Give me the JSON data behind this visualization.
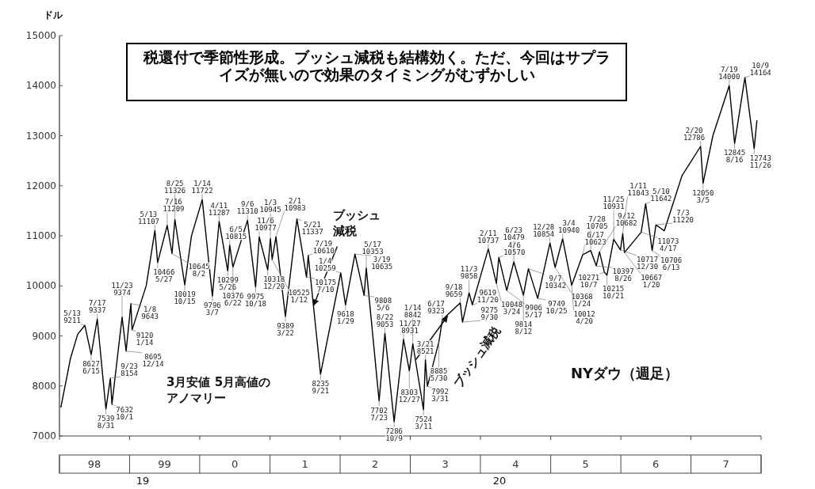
{
  "chart_data": {
    "type": "line",
    "title": "税還付で季節性形成。ブッシュ減税も結構効く。ただ、今回はサプライズが無いので効果のタイミングがむずかしい",
    "ylabel": "ドル",
    "xlim": [
      "1998-01-01",
      "2008-01-01"
    ],
    "xticks": [
      {
        "value": "1998-01-01",
        "label": null
      },
      {
        "value": "1998-07-02",
        "label": "98"
      },
      {
        "value": "1999-01-01",
        "label": null
      },
      {
        "value": "1999-07-02",
        "label": "99"
      },
      {
        "value": "2000-01-01",
        "label": null
      },
      {
        "value": "2000-07-02",
        "label": "0"
      },
      {
        "value": "2001-01-01",
        "label": null
      },
      {
        "value": "2001-07-02",
        "label": "1"
      },
      {
        "value": "2002-01-01",
        "label": null
      },
      {
        "value": "2002-07-02",
        "label": "2"
      },
      {
        "value": "2003-01-01",
        "label": null
      },
      {
        "value": "2003-07-02",
        "label": "3"
      },
      {
        "value": "2004-01-01",
        "label": null
      },
      {
        "value": "2004-07-02",
        "label": "4"
      },
      {
        "value": "2005-01-01",
        "label": null
      },
      {
        "value": "2005-07-02",
        "label": "5"
      },
      {
        "value": "2006-01-01",
        "label": null
      },
      {
        "value": "2006-07-02",
        "label": "6"
      },
      {
        "value": "2007-01-01",
        "label": null
      },
      {
        "value": "2007-07-02",
        "label": "7"
      },
      {
        "value": "2008-01-01",
        "label": null
      }
    ],
    "ylim": [
      7000,
      15000
    ],
    "yticks": [
      7000,
      8000,
      9000,
      10000,
      11000,
      12000,
      13000,
      14000,
      15000
    ],
    "series": [
      {
        "color": "#000000",
        "x": [
          "1998-01-09",
          "1998-02-27",
          "1998-04-06",
          "1998-05-13",
          "1998-06-15",
          "1998-07-17",
          "1998-08-31",
          "1998-09-23",
          "1998-10-01",
          "1998-11-23",
          "1998-12-14",
          "1999-01-08",
          "1999-01-14",
          "1999-03-29",
          "1999-05-13",
          "1999-05-27",
          "1999-07-16",
          "1999-08-10",
          "1999-08-25",
          "1999-10-15",
          "1999-11-19",
          "2000-01-14",
          "2000-03-07",
          "2000-04-11",
          "2000-05-26",
          "2000-06-05",
          "2000-06-22",
          "2000-09-06",
          "2000-10-18",
          "2000-11-06",
          "2000-12-20",
          "2001-01-03",
          "2001-01-12",
          "2001-02-01",
          "2001-03-22",
          "2001-05-21",
          "2001-07-10",
          "2001-07-19",
          "2001-09-21",
          "2002-01-04",
          "2002-01-29",
          "2002-03-19",
          "2002-05-06",
          "2002-05-17",
          "2002-07-23",
          "2002-08-22",
          "2002-10-09",
          "2002-11-27",
          "2002-12-27",
          "2003-01-14",
          "2003-03-11",
          "2003-03-21",
          "2003-03-31",
          "2003-05-30",
          "2003-06-17",
          "2003-09-18",
          "2003-09-30",
          "2003-11-03",
          "2003-11-20",
          "2004-02-11",
          "2004-03-24",
          "2004-04-06",
          "2004-05-17",
          "2004-06-23",
          "2004-08-12",
          "2004-09-07",
          "2004-10-25",
          "2004-12-28",
          "2005-01-24",
          "2005-03-04",
          "2005-04-20",
          "2005-06-17",
          "2005-07-28",
          "2005-08-26",
          "2005-09-12",
          "2005-10-07",
          "2005-10-21",
          "2005-11-25",
          "2005-12-30",
          "2006-01-11",
          "2006-01-20",
          "2006-04-17",
          "2006-05-10",
          "2006-06-13",
          "2006-07-03",
          "2006-08-15",
          "2006-11-15",
          "2007-02-20",
          "2007-03-05",
          "2007-04-25",
          "2007-07-19",
          "2007-08-16",
          "2007-10-09",
          "2007-11-26",
          "2007-12-10"
        ],
        "values": [
          7580,
          8545,
          9033,
          9211,
          8627,
          9337,
          7539,
          8154,
          7632,
          9374,
          8695,
          9643,
          9120,
          10006,
          11107,
          10466,
          11209,
          10645,
          11326,
          10019,
          10998,
          11722,
          9796,
          11287,
          10299,
          10815,
          10376,
          11310,
          9975,
          10977,
          10318,
          10945,
          10525,
          10983,
          9389,
          11337,
          10175,
          10610,
          8235,
          10259,
          9618,
          10635,
          9808,
          10353,
          7702,
          9053,
          7286,
          8931,
          8303,
          8842,
          7524,
          8521,
          7992,
          8885,
          9323,
          9659,
          9275,
          9858,
          9619,
          10737,
          10048,
          10570,
          9906,
          10479,
          9814,
          10342,
          9749,
          10854,
          10368,
          10940,
          10012,
          10623,
          10705,
          10397,
          10682,
          10271,
          10215,
          10931,
          10717,
          11043,
          10667,
          11073,
          11642,
          10706,
          11220,
          11100,
          12200,
          12786,
          12050,
          13000,
          14000,
          12845,
          14164,
          12743,
          13300
        ]
      }
    ],
    "annotations": [
      {
        "text": "5/13\n9211",
        "x": "1998-05-13",
        "y": 9211
      },
      {
        "text": "8627\n6/15",
        "x": "1998-06-15",
        "y": 8627
      },
      {
        "text": "7/17\n9337",
        "x": "1998-07-17",
        "y": 9337
      },
      {
        "text": "7539\n8/31",
        "x": "1998-08-31",
        "y": 7539
      },
      {
        "text": "9/23\n8154",
        "x": "1998-09-23",
        "y": 8154
      },
      {
        "text": "7632\n10/1",
        "x": "1998-10-01",
        "y": 7632
      },
      {
        "text": "11/23\n9374",
        "x": "1998-11-23",
        "y": 9374
      },
      {
        "text": "8695\n12/14",
        "x": "1998-12-14",
        "y": 8695
      },
      {
        "text": "1/8\n9643",
        "x": "1999-01-08",
        "y": 9643
      },
      {
        "text": "9120\n1/14",
        "x": "1999-01-14",
        "y": 9120
      },
      {
        "text": "5/13\n11107",
        "x": "1999-05-13",
        "y": 11107
      },
      {
        "text": "10466\n5/27",
        "x": "1999-05-27",
        "y": 10466
      },
      {
        "text": "7/16\n11209",
        "x": "1999-07-16",
        "y": 11209
      },
      {
        "text": "10645\n8/2",
        "x": "1999-08-10",
        "y": 10645
      },
      {
        "text": "8/25\n11326",
        "x": "1999-08-25",
        "y": 11326
      },
      {
        "text": "10019\n10/15",
        "x": "1999-10-15",
        "y": 10019
      },
      {
        "text": "1/14\n11722",
        "x": "2000-01-14",
        "y": 11722
      },
      {
        "text": "9796\n3/7",
        "x": "2000-03-07",
        "y": 9796
      },
      {
        "text": "4/11\n11287",
        "x": "2000-04-11",
        "y": 11287
      },
      {
        "text": "10299\n5/26",
        "x": "2000-05-26",
        "y": 10299
      },
      {
        "text": "6/5\n10815",
        "x": "2000-06-05",
        "y": 10815
      },
      {
        "text": "10376\n6/22",
        "x": "2000-06-22",
        "y": 10376
      },
      {
        "text": "9/6\n11310",
        "x": "2000-09-06",
        "y": 11310
      },
      {
        "text": "9975\n10/18",
        "x": "2000-10-18",
        "y": 9975
      },
      {
        "text": "11/6\n10977",
        "x": "2000-11-06",
        "y": 10977
      },
      {
        "text": "10318\n12/20",
        "x": "2000-12-20",
        "y": 10318
      },
      {
        "text": "1/3\n10945",
        "x": "2001-01-03",
        "y": 10945
      },
      {
        "text": "10525\n1/12",
        "x": "2001-01-12",
        "y": 10525
      },
      {
        "text": "2/1\n10983",
        "x": "2001-02-01",
        "y": 10983
      },
      {
        "text": "9389\n3/22",
        "x": "2001-03-22",
        "y": 9389
      },
      {
        "text": "5/21\n11337",
        "x": "2001-05-21",
        "y": 11337
      },
      {
        "text": "10175\n7/10",
        "x": "2001-07-10",
        "y": 10175
      },
      {
        "text": "7/19\n10610",
        "x": "2001-07-19",
        "y": 10610
      },
      {
        "text": "8235\n9/21",
        "x": "2001-09-21",
        "y": 8235
      },
      {
        "text": "1/4\n10259",
        "x": "2002-01-04",
        "y": 10259
      },
      {
        "text": "9618\n1/29",
        "x": "2002-01-29",
        "y": 9618
      },
      {
        "text": "3/19\n10635",
        "x": "2002-03-19",
        "y": 10635
      },
      {
        "text": "9808\n5/6",
        "x": "2002-05-06",
        "y": 9808
      },
      {
        "text": "5/17\n10353",
        "x": "2002-05-17",
        "y": 10353
      },
      {
        "text": "7702\n7/23",
        "x": "2002-07-23",
        "y": 7702
      },
      {
        "text": "8/22\n9053",
        "x": "2002-08-22",
        "y": 9053
      },
      {
        "text": "7286\n10/9",
        "x": "2002-10-09",
        "y": 7286
      },
      {
        "text": "11/27\n8931",
        "x": "2002-11-27",
        "y": 8931
      },
      {
        "text": "8303\n12/27",
        "x": "2002-12-27",
        "y": 8303
      },
      {
        "text": "1/14\n8842",
        "x": "2003-01-14",
        "y": 8842
      },
      {
        "text": "7524\n3/11",
        "x": "2003-03-11",
        "y": 7524
      },
      {
        "text": "3/21\n8521",
        "x": "2003-03-21",
        "y": 8521
      },
      {
        "text": "7992\n3/31",
        "x": "2003-03-31",
        "y": 7992
      },
      {
        "text": "8885\n5/30",
        "x": "2003-05-30",
        "y": 8885
      },
      {
        "text": "6/17\n9323",
        "x": "2003-06-17",
        "y": 9323
      },
      {
        "text": "9/18\n9659",
        "x": "2003-09-18",
        "y": 9659
      },
      {
        "text": "9275\n9/30",
        "x": "2003-09-30",
        "y": 9275
      },
      {
        "text": "11/3\n9858",
        "x": "2003-11-03",
        "y": 9858
      },
      {
        "text": "9619\n11/20",
        "x": "2003-11-20",
        "y": 9619
      },
      {
        "text": "2/11\n10737",
        "x": "2004-02-11",
        "y": 10737
      },
      {
        "text": "10048\n3/24",
        "x": "2004-03-24",
        "y": 10048
      },
      {
        "text": "4/6\n10570",
        "x": "2004-04-06",
        "y": 10570
      },
      {
        "text": "9906\n5/17",
        "x": "2004-05-17",
        "y": 9906
      },
      {
        "text": "6/23\n10479",
        "x": "2004-06-23",
        "y": 10479
      },
      {
        "text": "9814\n8/12",
        "x": "2004-08-12",
        "y": 9814
      },
      {
        "text": "9/7\n10342",
        "x": "2004-09-07",
        "y": 10342
      },
      {
        "text": "9749\n10/25",
        "x": "2004-10-25",
        "y": 9749
      },
      {
        "text": "12/28\n10854",
        "x": "2004-12-28",
        "y": 10854
      },
      {
        "text": "10368\n1/24",
        "x": "2005-01-24",
        "y": 10368
      },
      {
        "text": "3/4\n10940",
        "x": "2005-03-04",
        "y": 10940
      },
      {
        "text": "10012\n4/20",
        "x": "2005-04-20",
        "y": 10012
      },
      {
        "text": "6/17\n10623",
        "x": "2005-06-17",
        "y": 10623
      },
      {
        "text": "7/28\n10705",
        "x": "2005-07-28",
        "y": 10705
      },
      {
        "text": "10397\n8/26",
        "x": "2005-08-26",
        "y": 10397
      },
      {
        "text": "9/12\n10682",
        "x": "2005-09-12",
        "y": 10682
      },
      {
        "text": "10271\n10/7",
        "x": "2005-10-07",
        "y": 10271
      },
      {
        "text": "10215\n10/21",
        "x": "2005-10-21",
        "y": 10215
      },
      {
        "text": "11/25\n10931",
        "x": "2005-11-25",
        "y": 10931
      },
      {
        "text": "10717\n12/30",
        "x": "2005-12-30",
        "y": 10717
      },
      {
        "text": "1/11\n11043",
        "x": "2006-01-11",
        "y": 11043
      },
      {
        "text": "10667\n1/20",
        "x": "2006-01-20",
        "y": 10667
      },
      {
        "text": "11073\n4/17",
        "x": "2006-04-17",
        "y": 11073
      },
      {
        "text": "5/10\n11642",
        "x": "2006-05-10",
        "y": 11642
      },
      {
        "text": "10706\n6/13",
        "x": "2006-06-13",
        "y": 10706
      },
      {
        "text": "7/3\n11220",
        "x": "2006-07-03",
        "y": 11220
      },
      {
        "text": "2/20\n12786",
        "x": "2007-02-20",
        "y": 12786
      },
      {
        "text": "12050\n3/5",
        "x": "2007-03-05",
        "y": 12050
      },
      {
        "text": "7/19\n14000",
        "x": "2007-07-19",
        "y": 14000
      },
      {
        "text": "12845\n8/16",
        "x": "2007-08-16",
        "y": 12845
      },
      {
        "text": "10/9\n14164",
        "x": "2007-10-09",
        "y": 14164
      },
      {
        "text": "12743\n11/26",
        "x": "2007-11-26",
        "y": 12743
      },
      {
        "text": "ブッシュ減税",
        "x": "2001-08-15",
        "y": 9600
      },
      {
        "text": "ブッシュ減税",
        "x": "2003-07-15",
        "y": 9400
      },
      "3月安値 5月高値のアノマリー",
      "NYダウ（週足）",
      "19",
      "20"
    ]
  }
}
